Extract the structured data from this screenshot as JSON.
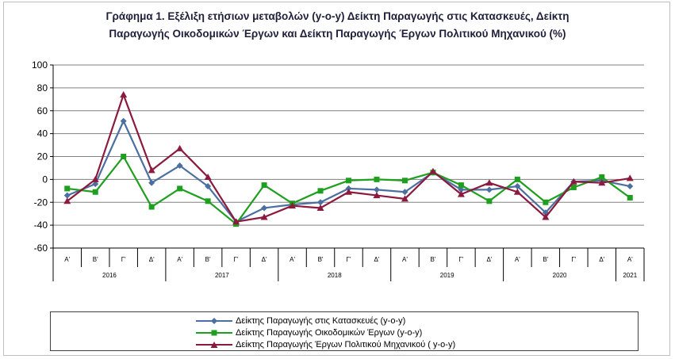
{
  "chart_data": {
    "type": "line",
    "title_line1": "Γράφημα 1. Εξέλιξη ετήσιων μεταβολών (y-o-y) Δείκτη Παραγωγής στις Κατασκευές, Δείκτη",
    "title_line2": "Παραγωγής Οικοδομικών Έργων και  Δείκτη Παραγωγής  Έργων Πολιτικού Μηχανικού (%)",
    "quarters": [
      "Α'",
      "Β'",
      "Γ'",
      "Δ'",
      "Α'",
      "Β'",
      "Γ'",
      "Δ'",
      "Α'",
      "Β'",
      "Γ'",
      "Δ'",
      "Α'",
      "Β'",
      "Γ'",
      "Δ'",
      "Α'",
      "Β'",
      "Γ'",
      "Δ'",
      "Α'"
    ],
    "years": [
      {
        "label": "2016",
        "count": 4
      },
      {
        "label": "2017",
        "count": 4
      },
      {
        "label": "2018",
        "count": 4
      },
      {
        "label": "2019",
        "count": 4
      },
      {
        "label": "2020",
        "count": 4
      },
      {
        "label": "2021",
        "count": 1
      }
    ],
    "ylim": [
      -60,
      100
    ],
    "yticks": [
      -60,
      -40,
      -20,
      0,
      20,
      40,
      60,
      80,
      100
    ],
    "grid": true,
    "legend_position": "bottom",
    "series": [
      {
        "name": "Δείκτης Παραγωγής στις Κατασκευές (y-o-y)",
        "color": "#4a6fa0",
        "marker": "diamond",
        "values": [
          -14,
          -4,
          51,
          -3,
          12,
          -6,
          -37,
          -25,
          -22,
          -20,
          -8,
          -9,
          -11,
          6,
          -9,
          -9,
          -6,
          -29,
          -2,
          -1,
          -6
        ]
      },
      {
        "name": "Δείκτης Παραγωγής Οικοδομικών Έργων (y-o-y)",
        "color": "#1f9f1f",
        "marker": "square",
        "values": [
          -8,
          -11,
          20,
          -24,
          -8,
          -19,
          -39,
          -5,
          -21,
          -10,
          -1,
          0,
          -1,
          6,
          -5,
          -19,
          0,
          -20,
          -7,
          2,
          -16
        ]
      },
      {
        "name": "Δείκτης Παραγωγής Έργων Πολιτικού Μηχανικού ( y-o-y)",
        "color": "#8b1a3e",
        "marker": "triangle",
        "values": [
          -19,
          0,
          74,
          8,
          27,
          2,
          -37,
          -33,
          -23,
          -25,
          -11,
          -14,
          -17,
          7,
          -13,
          -3,
          -11,
          -33,
          -2,
          -3,
          1
        ]
      }
    ]
  }
}
